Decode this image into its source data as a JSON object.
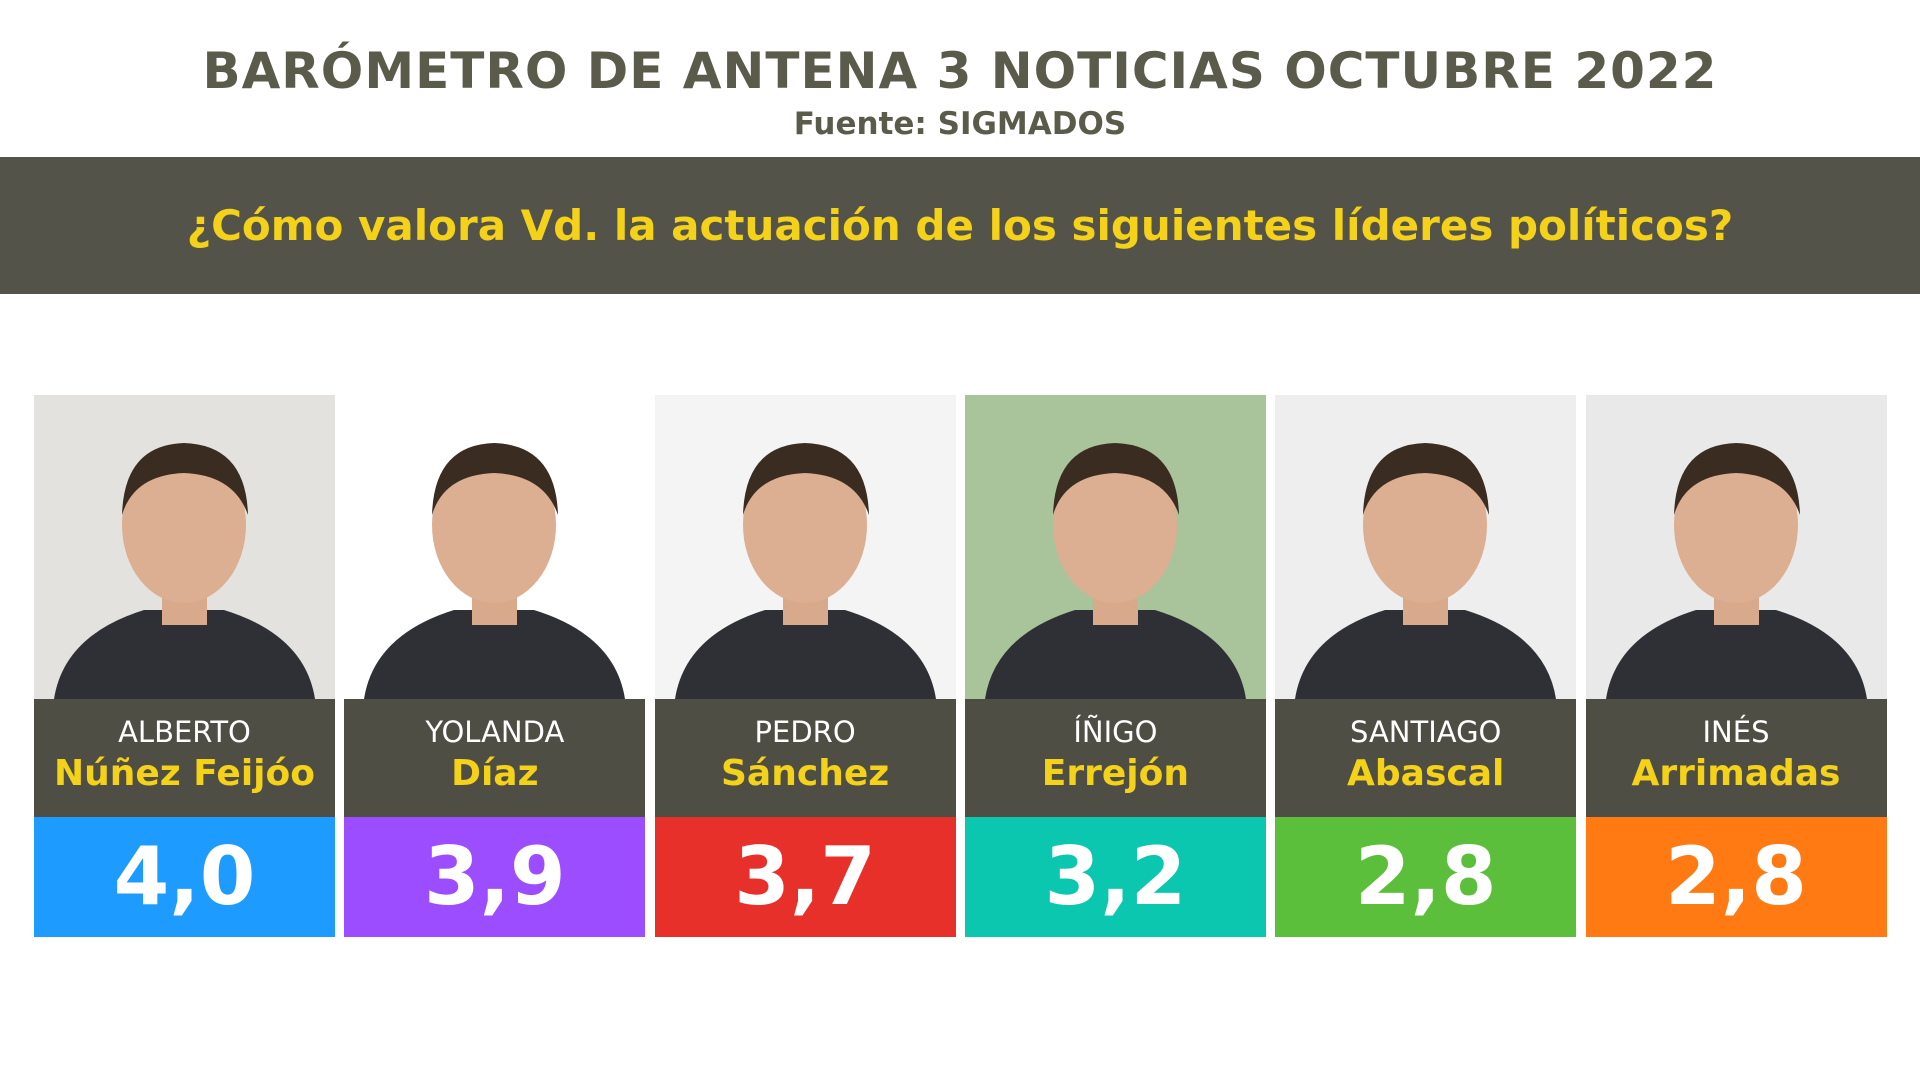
{
  "header": {
    "title": "BARÓMETRO DE ANTENA 3 NOTICIAS OCTUBRE 2022",
    "source": "Fuente: SIGMADOS"
  },
  "question": "¿Cómo valora Vd. la actuación de los siguientes líderes políticos?",
  "leaders": [
    {
      "first": "ALBERTO",
      "last": "Núñez Feijóo",
      "score": "4,0",
      "color": "#1e9bff"
    },
    {
      "first": "YOLANDA",
      "last": "Díaz",
      "score": "3,9",
      "color": "#9b4dff"
    },
    {
      "first": "PEDRO",
      "last": "Sánchez",
      "score": "3,7",
      "color": "#e8302a"
    },
    {
      "first": "ÍÑIGO",
      "last": "Errejón",
      "score": "3,2",
      "color": "#0cc7b0"
    },
    {
      "first": "SANTIAGO",
      "last": "Abascal",
      "score": "2,8",
      "color": "#5cbf3c"
    },
    {
      "first": "INÉS",
      "last": "Arrimadas",
      "score": "2,8",
      "color": "#ff7a12"
    }
  ]
}
